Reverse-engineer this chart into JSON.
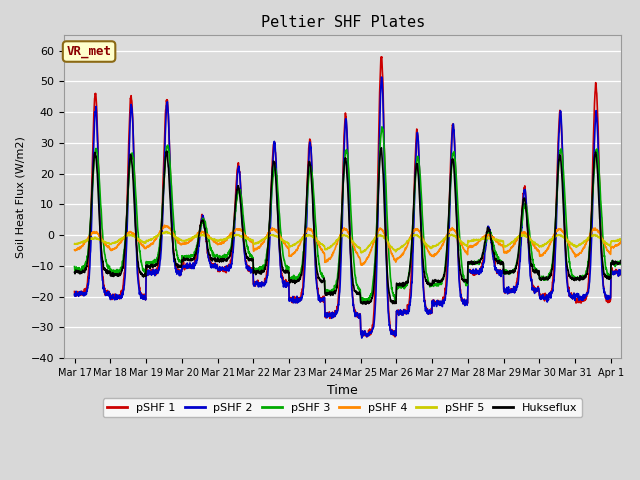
{
  "title": "Peltier SHF Plates",
  "xlabel": "Time",
  "ylabel": "Soil Heat Flux (W/m2)",
  "ylim": [
    -40,
    65
  ],
  "annotation": "VR_met",
  "fig_facecolor": "#d8d8d8",
  "ax_facecolor": "#dcdcdc",
  "series": [
    {
      "label": "pSHF 1",
      "color": "#cc0000",
      "lw": 1.2
    },
    {
      "label": "pSHF 2",
      "color": "#0000cc",
      "lw": 1.2
    },
    {
      "label": "pSHF 3",
      "color": "#00aa00",
      "lw": 1.2
    },
    {
      "label": "pSHF 4",
      "color": "#ff8800",
      "lw": 1.2
    },
    {
      "label": "pSHF 5",
      "color": "#cccc00",
      "lw": 1.2
    },
    {
      "label": "Hukseflux",
      "color": "#000000",
      "lw": 1.2
    }
  ],
  "xtick_labels": [
    "Mar 17",
    "Mar 18",
    "Mar 19",
    "Mar 20",
    "Mar 21",
    "Mar 22",
    "Mar 23",
    "Mar 24",
    "Mar 25",
    "Mar 26",
    "Mar 27",
    "Mar 28",
    "Mar 29",
    "Mar 30",
    "Mar 31",
    "Apr 1"
  ],
  "yticks": [
    -40,
    -30,
    -20,
    -10,
    0,
    10,
    20,
    30,
    40,
    50,
    60
  ],
  "day_peaks_s1": [
    46,
    45,
    44,
    6,
    23,
    30,
    31,
    39,
    58,
    34,
    36,
    2,
    15,
    40,
    49,
    5
  ],
  "day_peaks_s2": [
    41,
    42,
    43,
    6,
    22,
    30,
    30,
    38,
    51,
    33,
    36,
    2,
    15,
    40,
    40,
    5
  ],
  "day_peaks_s3": [
    28,
    27,
    29,
    5,
    15,
    22,
    22,
    28,
    35,
    25,
    27,
    1,
    10,
    28,
    28,
    3
  ],
  "day_peaks_s4": [
    1,
    1,
    3,
    1,
    2,
    2,
    2,
    2,
    2,
    2,
    2,
    0,
    1,
    2,
    2,
    0
  ],
  "day_peaks_s5": [
    -1,
    0,
    1,
    0,
    0,
    0,
    0,
    0,
    0,
    0,
    0,
    -1,
    0,
    0,
    0,
    -1
  ],
  "day_peaks_sh": [
    27,
    26,
    27,
    5,
    16,
    24,
    24,
    25,
    28,
    23,
    25,
    2,
    12,
    26,
    27,
    3
  ],
  "day_night_s1": [
    -19,
    -20,
    -12,
    -10,
    -11,
    -16,
    -21,
    -26,
    -32,
    -25,
    -22,
    -12,
    -18,
    -20,
    -21,
    -12
  ],
  "day_night_s2": [
    -19,
    -20,
    -12,
    -10,
    -11,
    -16,
    -21,
    -26,
    -32,
    -25,
    -22,
    -12,
    -18,
    -20,
    -20,
    -12
  ],
  "day_night_s3": [
    -11,
    -12,
    -9,
    -7,
    -7,
    -11,
    -14,
    -18,
    -21,
    -17,
    -16,
    -9,
    -12,
    -14,
    -14,
    -9
  ],
  "day_night_s4": [
    -5,
    -5,
    -4,
    -3,
    -3,
    -5,
    -7,
    -9,
    -10,
    -8,
    -7,
    -4,
    -6,
    -7,
    -7,
    -4
  ],
  "day_night_s5": [
    -3,
    -3,
    -2,
    -2,
    -2,
    -3,
    -4,
    -5,
    -6,
    -5,
    -4,
    -2,
    -4,
    -4,
    -4,
    -2
  ],
  "day_night_sh": [
    -12,
    -13,
    -10,
    -8,
    -8,
    -12,
    -15,
    -19,
    -22,
    -16,
    -15,
    -9,
    -12,
    -14,
    -14,
    -9
  ]
}
